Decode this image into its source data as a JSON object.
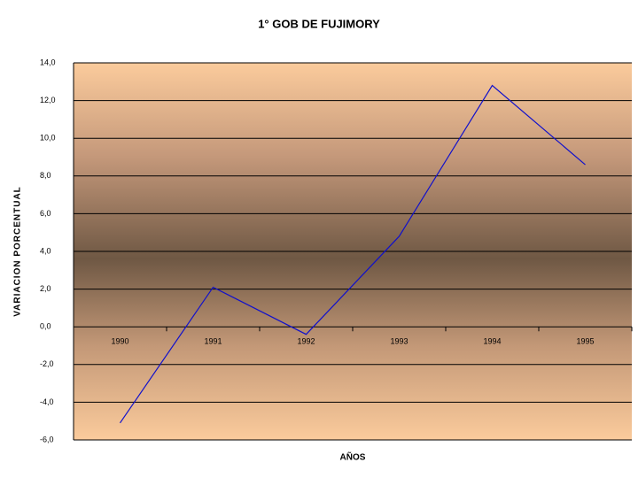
{
  "chart_data": {
    "type": "line",
    "title": "1° GOB DE FUJIMORY",
    "x_label": "AÑOS",
    "y_label": "VARIACION PORCENTUAL",
    "categories": [
      "1990",
      "1991",
      "1992",
      "1993",
      "1994",
      "1995"
    ],
    "series": [
      {
        "color": "#1010cc",
        "values": [
          -5.1,
          2.1,
          -0.4,
          4.8,
          12.8,
          8.6
        ]
      }
    ],
    "ylim": [
      -6,
      14
    ],
    "yticks": [
      {
        "value": -6,
        "label": "-6,0"
      },
      {
        "value": -4,
        "label": "-4,0"
      },
      {
        "value": -2,
        "label": "-2,0"
      },
      {
        "value": 0,
        "label": "0,0"
      },
      {
        "value": 2,
        "label": "2,0"
      },
      {
        "value": 4,
        "label": "4,0"
      },
      {
        "value": 6,
        "label": "6,0"
      },
      {
        "value": 8,
        "label": "8,0"
      },
      {
        "value": 10,
        "label": "10,0"
      },
      {
        "value": 12,
        "label": "12,0"
      },
      {
        "value": 14,
        "label": "14,0"
      }
    ],
    "grid": true
  }
}
